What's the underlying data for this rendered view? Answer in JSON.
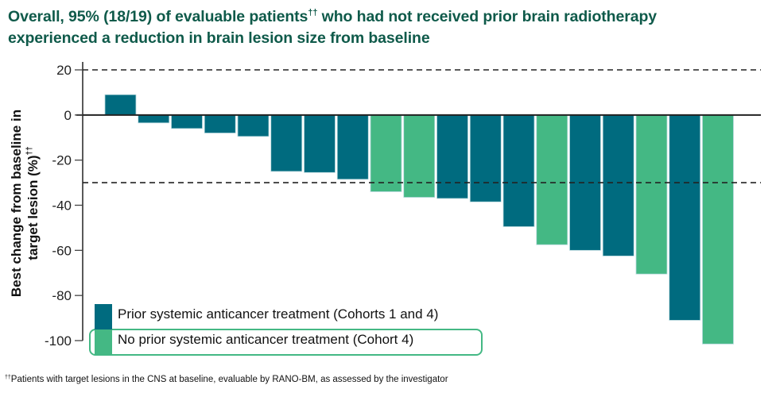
{
  "title": {
    "line1_pre": "Overall, 95% (18/19) of evaluable patients",
    "line1_sup": "††",
    "line1_post": " who had not received prior brain radiotherapy",
    "line2": "experienced a reduction in brain lesion size from baseline"
  },
  "footnote": {
    "marker": "††",
    "text": "Patients with target lesions in the CNS at baseline, evaluable by RANO-BM, as assessed by the investigator"
  },
  "colors": {
    "title": "#0f5a4a",
    "prior": "#006b7f",
    "no_prior": "#44b884",
    "bar_edge": "#b9d9de",
    "axis": "#222222"
  },
  "chart_data": {
    "type": "bar",
    "title": "Overall, 95% (18/19) of evaluable patients†† who had not received prior brain radiotherapy experienced a reduction in brain lesion size from baseline",
    "xlabel": "",
    "ylabel_line1": "Best change from baseline in",
    "ylabel_line2": "target lesion (%)",
    "ylabel_sup": "††",
    "ylim": [
      -100,
      20
    ],
    "yticks": [
      20,
      0,
      -20,
      -40,
      -60,
      -80,
      -100
    ],
    "ytick_labels": [
      "20",
      "0",
      "-20",
      "-40",
      "-60",
      "-80",
      "-100"
    ],
    "reference_lines": [
      20,
      -30
    ],
    "grid": false,
    "legend_position": "bottom-left",
    "series": [
      {
        "name": "Prior systemic anticancer treatment (Cohorts 1 and 4)",
        "key": "prior"
      },
      {
        "name": "No prior systemic anticancer treatment (Cohort 4)",
        "key": "no_prior"
      }
    ],
    "patients": [
      {
        "value": 9,
        "group": "prior"
      },
      {
        "value": -3.5,
        "group": "prior"
      },
      {
        "value": -6,
        "group": "prior"
      },
      {
        "value": -8,
        "group": "prior"
      },
      {
        "value": -9.5,
        "group": "prior"
      },
      {
        "value": -25,
        "group": "prior"
      },
      {
        "value": -25.5,
        "group": "prior"
      },
      {
        "value": -28.5,
        "group": "prior"
      },
      {
        "value": -34,
        "group": "no_prior"
      },
      {
        "value": -36.5,
        "group": "no_prior"
      },
      {
        "value": -37,
        "group": "prior"
      },
      {
        "value": -38.5,
        "group": "prior"
      },
      {
        "value": -49.5,
        "group": "prior"
      },
      {
        "value": -57.5,
        "group": "no_prior"
      },
      {
        "value": -60,
        "group": "prior"
      },
      {
        "value": -62.5,
        "group": "prior"
      },
      {
        "value": -70.5,
        "group": "no_prior"
      },
      {
        "value": -91,
        "group": "prior"
      },
      {
        "value": -101.5,
        "group": "no_prior"
      }
    ]
  }
}
